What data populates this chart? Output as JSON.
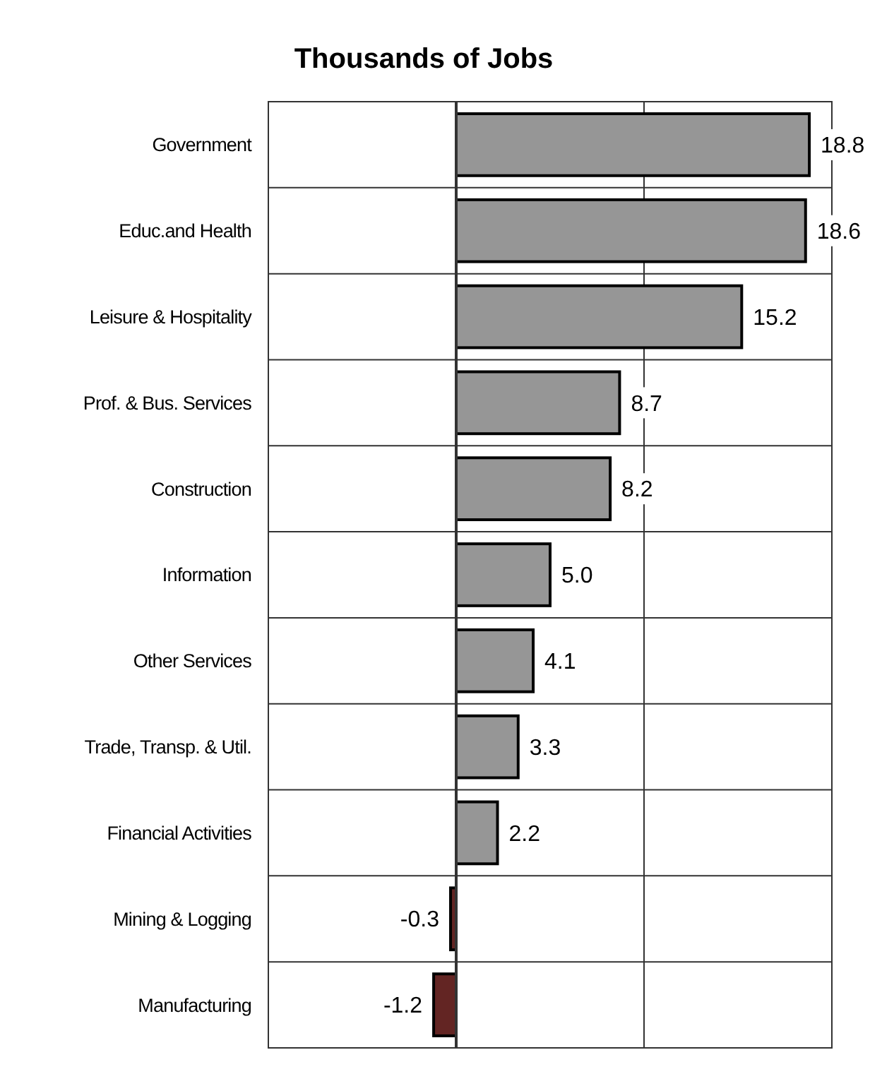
{
  "chart_data": {
    "type": "bar",
    "title": "Thousands of Jobs",
    "orientation": "horizontal",
    "categories": [
      "Government",
      "Educ.and Health",
      "Leisure & Hospitality",
      "Prof. & Bus. Services",
      "Construction",
      "Information",
      "Other Services",
      "Trade, Transp. & Util.",
      "Financial Activities",
      "Mining & Logging",
      "Manufacturing"
    ],
    "values": [
      18.8,
      18.6,
      15.2,
      8.7,
      8.2,
      5.0,
      4.1,
      3.3,
      2.2,
      -0.3,
      -1.2
    ],
    "value_labels": [
      "18.8",
      "18.6",
      "15.2",
      "8.7",
      "8.2",
      "5.0",
      "4.1",
      "3.3",
      "2.2",
      "-0.3",
      "-1.2"
    ],
    "colors": [
      "#969696",
      "#969696",
      "#969696",
      "#969696",
      "#969696",
      "#969696",
      "#969696",
      "#969696",
      "#969696",
      "#632523",
      "#632523"
    ],
    "xlim": [
      -10,
      20
    ],
    "xticks": [
      {
        "value": -10,
        "label": null
      },
      {
        "value": 0,
        "label": null
      },
      {
        "value": 10,
        "label": null
      },
      {
        "value": 20,
        "label": null
      }
    ],
    "grid": true,
    "tick_labels": "y"
  }
}
